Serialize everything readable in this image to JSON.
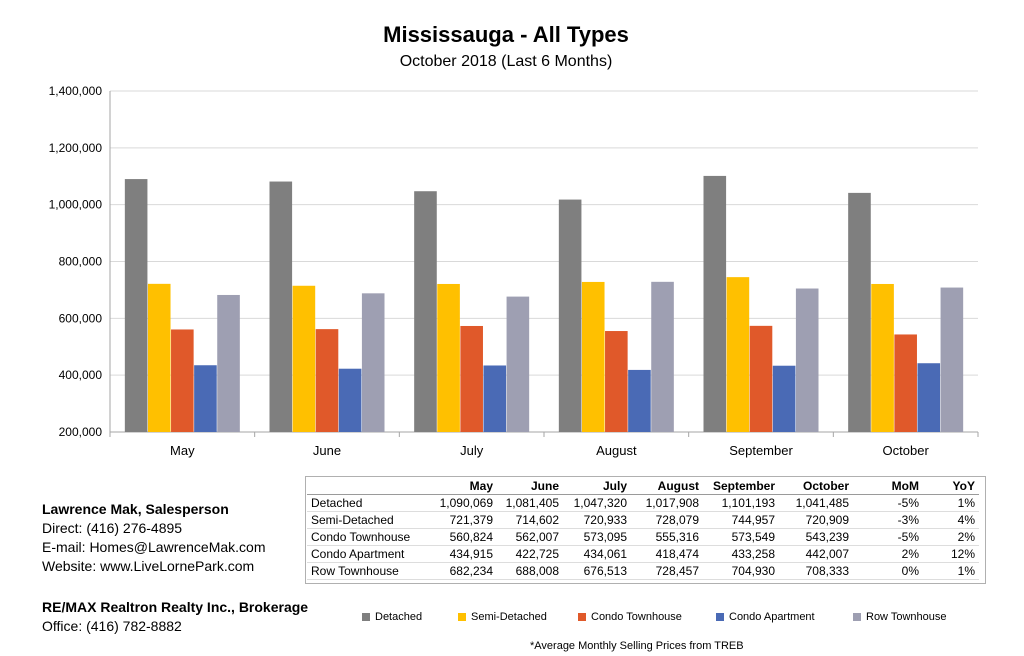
{
  "chart_data": {
    "type": "bar",
    "title": "Mississauga - All Types",
    "subtitle": "October 2018 (Last 6 Months)",
    "categories": [
      "May",
      "June",
      "July",
      "August",
      "September",
      "October"
    ],
    "ylim": [
      200000,
      1400000
    ],
    "yticks": [
      "200,000",
      "400,000",
      "600,000",
      "800,000",
      "1,000,000",
      "1,200,000",
      "1,400,000"
    ],
    "grid": true,
    "legend_position": "bottom",
    "series": [
      {
        "name": "Detached",
        "color": "#7f7f7f",
        "values": [
          1090069,
          1081405,
          1047320,
          1017908,
          1101193,
          1041485
        ]
      },
      {
        "name": "Semi-Detached",
        "color": "#ffc000",
        "values": [
          721379,
          714602,
          720933,
          728079,
          744957,
          720909
        ]
      },
      {
        "name": "Condo Townhouse",
        "color": "#e0592a",
        "values": [
          560824,
          562007,
          573095,
          555316,
          573549,
          543239
        ]
      },
      {
        "name": "Condo Apartment",
        "color": "#4a6ab5",
        "values": [
          434915,
          422725,
          434061,
          418474,
          433258,
          442007
        ]
      },
      {
        "name": "Row Townhouse",
        "color": "#9e9fb2",
        "values": [
          682234,
          688008,
          676513,
          728457,
          704930,
          708333
        ]
      }
    ]
  },
  "table": {
    "headers": [
      "",
      "May",
      "June",
      "July",
      "August",
      "September",
      "October",
      "MoM",
      "YoY"
    ],
    "rows": [
      [
        "Detached",
        "1,090,069",
        "1,081,405",
        "1,047,320",
        "1,017,908",
        "1,101,193",
        "1,041,485",
        "-5%",
        "1%"
      ],
      [
        "Semi-Detached",
        "721,379",
        "714,602",
        "720,933",
        "728,079",
        "744,957",
        "720,909",
        "-3%",
        "4%"
      ],
      [
        "Condo Townhouse",
        "560,824",
        "562,007",
        "573,095",
        "555,316",
        "573,549",
        "543,239",
        "-5%",
        "2%"
      ],
      [
        "Condo Apartment",
        "434,915",
        "422,725",
        "434,061",
        "418,474",
        "433,258",
        "442,007",
        "2%",
        "12%"
      ],
      [
        "Row Townhouse",
        "682,234",
        "688,008",
        "676,513",
        "728,457",
        "704,930",
        "708,333",
        "0%",
        "1%"
      ]
    ]
  },
  "contact": {
    "name": "Lawrence Mak, Salesperson",
    "direct": "Direct:  (416) 276-4895",
    "email": "E-mail:  Homes@LawrenceMak.com",
    "website": "Website: www.LiveLornePark.com",
    "brokerage": "RE/MAX Realtron Realty Inc., Brokerage",
    "office": "Office: (416) 782-8882"
  },
  "footnote": "*Average Monthly Selling Prices  from TREB"
}
